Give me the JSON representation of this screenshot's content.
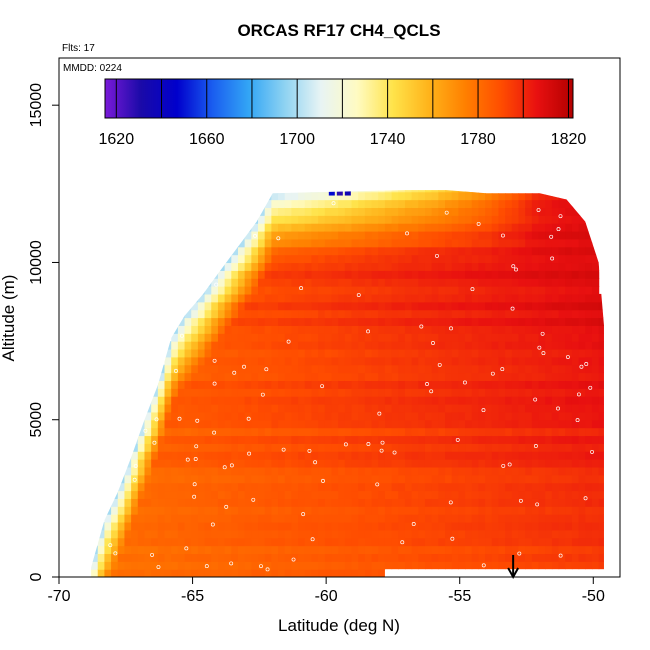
{
  "chart_data": {
    "type": "heatmap",
    "title": "ORCAS RF17 CH4_QCLS",
    "annotations": {
      "flts": "Flts: 17",
      "mmdd": "MMDD: 0224"
    },
    "xlabel": "Latitude (deg N)",
    "ylabel": "Altitude (m)",
    "xlim": [
      -70,
      -49
    ],
    "ylim": [
      0,
      16500
    ],
    "x_ticks": [
      -70,
      -65,
      -60,
      -55,
      -50
    ],
    "y_ticks": [
      0,
      5000,
      10000,
      15000
    ],
    "colorbar": {
      "range": [
        1615,
        1822
      ],
      "ticks": [
        1620,
        1660,
        1700,
        1740,
        1780,
        1820
      ],
      "colors": [
        "#7a1ad9",
        "#1a0aa8",
        "#0000cc",
        "#1a5ef0",
        "#33a6f5",
        "#8fd3f2",
        "#e8f4f4",
        "#fffbc2",
        "#ffe34a",
        "#ffb31a",
        "#ff8000",
        "#ff4d00",
        "#e81010",
        "#b30000"
      ]
    },
    "field": {
      "lat_min": -68.8,
      "lat_max": -49.6,
      "tops": [
        [
          -68.8,
          300
        ],
        [
          -68.3,
          1800
        ],
        [
          -67.8,
          2700
        ],
        [
          -67.3,
          3800
        ],
        [
          -66.8,
          5000
        ],
        [
          -66.3,
          6100
        ],
        [
          -65.8,
          7600
        ],
        [
          -65.3,
          8300
        ],
        [
          -64.6,
          9000
        ],
        [
          -64.0,
          9700
        ],
        [
          -63.3,
          10500
        ],
        [
          -62.6,
          11300
        ],
        [
          -62.0,
          12200
        ],
        [
          -57.0,
          12300
        ],
        [
          -55.5,
          12300
        ],
        [
          -54.0,
          12200
        ],
        [
          -52.0,
          12200
        ],
        [
          -51.0,
          12000
        ],
        [
          -50.3,
          11300
        ],
        [
          -49.8,
          10000
        ],
        [
          -49.6,
          8000
        ],
        [
          -49.6,
          4400
        ]
      ],
      "bottoms": [
        [
          -68.8,
          0
        ],
        [
          -57.8,
          0
        ],
        [
          -57.8,
          250
        ],
        [
          -49.6,
          250
        ]
      ],
      "upper_band": [
        [
          -62.0,
          1700
        ],
        [
          -59.0,
          1720
        ],
        [
          -56.0,
          1745
        ],
        [
          -54.0,
          1770
        ],
        [
          -52.0,
          1800
        ],
        [
          -50.0,
          1810
        ]
      ]
    },
    "arrow": {
      "lat": -53.0
    }
  }
}
